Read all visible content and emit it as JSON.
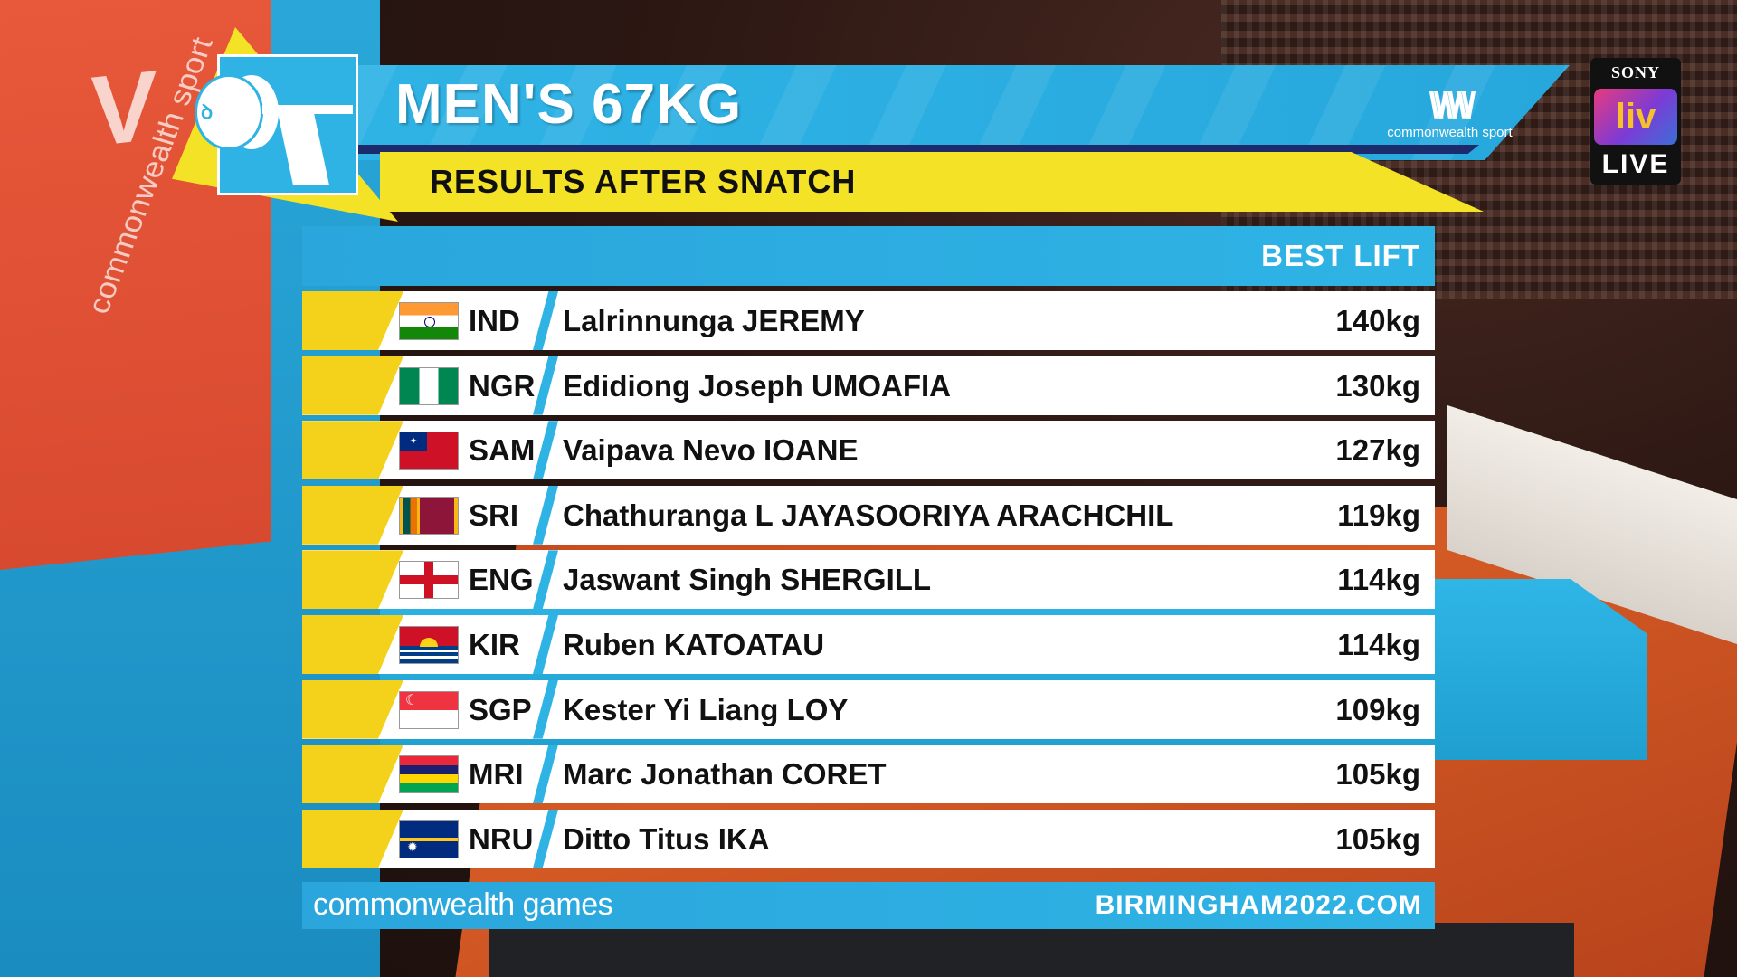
{
  "header": {
    "title": "MEN'S 67KG",
    "subtitle": "RESULTS AFTER SNATCH",
    "logo_text": "commonwealth sport"
  },
  "broadcaster": {
    "brand": "SONY",
    "channel": "liv",
    "status": "LIVE"
  },
  "arena_banner": {
    "text": "commonwealth sport"
  },
  "table": {
    "column_header": "BEST LIFT",
    "rows": [
      {
        "code": "IND",
        "name": "Lalrinnunga JEREMY",
        "lift": "140kg",
        "flag": "india-flag"
      },
      {
        "code": "NGR",
        "name": "Edidiong Joseph UMOAFIA",
        "lift": "130kg",
        "flag": "nigeria-flag"
      },
      {
        "code": "SAM",
        "name": "Vaipava Nevo IOANE",
        "lift": "127kg",
        "flag": "samoa-flag"
      },
      {
        "code": "SRI",
        "name": "Chathuranga L JAYASOORIYA ARACHCHIL",
        "lift": "119kg",
        "flag": "sri-lanka-flag"
      },
      {
        "code": "ENG",
        "name": "Jaswant Singh SHERGILL",
        "lift": "114kg",
        "flag": "england-flag"
      },
      {
        "code": "KIR",
        "name": "Ruben KATOATAU",
        "lift": "114kg",
        "flag": "kiribati-flag"
      },
      {
        "code": "SGP",
        "name": "Kester Yi Liang LOY",
        "lift": "109kg",
        "flag": "singapore-flag"
      },
      {
        "code": "MRI",
        "name": "Marc Jonathan CORET",
        "lift": "105kg",
        "flag": "mauritius-flag"
      },
      {
        "code": "NRU",
        "name": "Ditto Titus IKA",
        "lift": "105kg",
        "flag": "nauru-flag"
      }
    ]
  },
  "footer": {
    "left": "commonwealth games",
    "right": "BIRMINGHAM2022.COM"
  },
  "colors": {
    "accent_blue": "#2fb3e5",
    "accent_yellow": "#f4e227",
    "row_yellow": "#f4d21c"
  }
}
